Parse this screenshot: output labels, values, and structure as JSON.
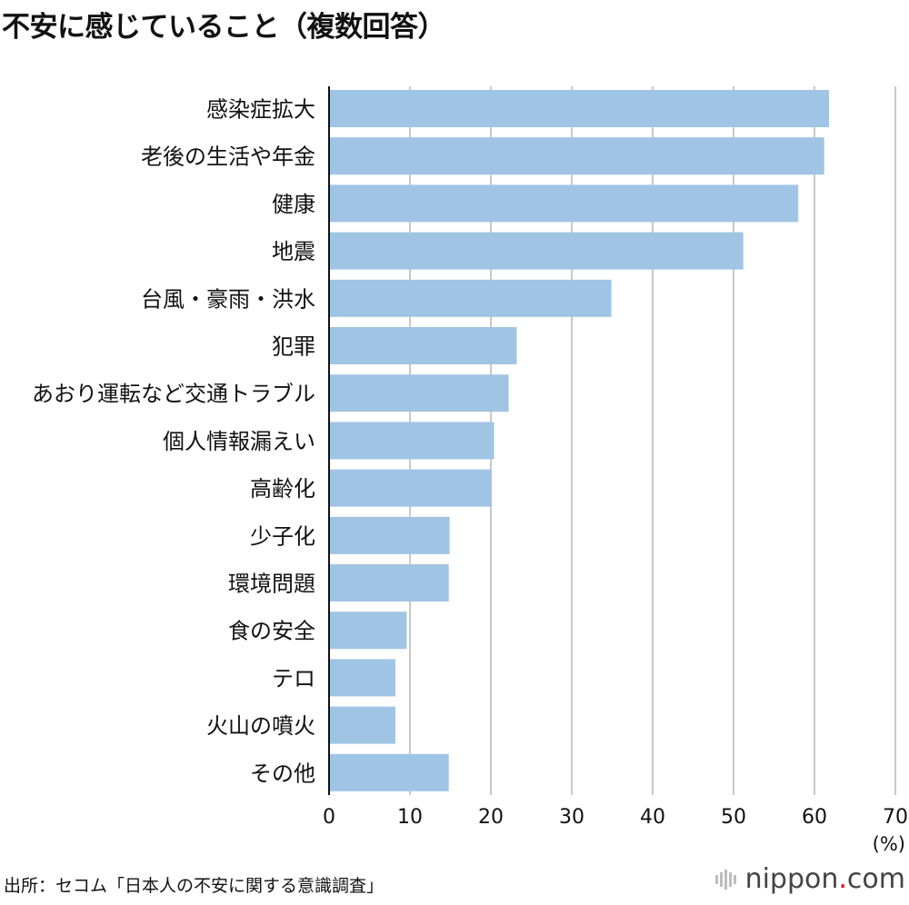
{
  "chart_data": {
    "type": "bar",
    "orientation": "horizontal",
    "title": "不安に感じていること（複数回答）",
    "categories": [
      "感染症拡大",
      "老後の生活や年金",
      "健康",
      "地震",
      "台風・豪雨・洪水",
      "犯罪",
      "あおり運転など交通トラブル",
      "個人情報漏えい",
      "高齢化",
      "少子化",
      "環境問題",
      "食の安全",
      "テロ",
      "火山の噴火",
      "その他"
    ],
    "values": [
      61.8,
      61.2,
      58.0,
      51.2,
      34.9,
      23.2,
      22.2,
      20.4,
      20.1,
      14.9,
      14.8,
      9.6,
      8.2,
      8.2,
      14.8
    ],
    "xlim": [
      0,
      70
    ],
    "xticks": [
      0,
      10,
      20,
      30,
      40,
      50,
      60,
      70
    ],
    "unit": "(%)",
    "grid": true,
    "bar_color": "#a0c4e4",
    "grid_color": "#c8c8c8"
  },
  "source": "出所：セコム「日本人の不安に関する意識調査」",
  "logo": {
    "name": "nippon",
    "dot": ".",
    "suffix": "com"
  }
}
